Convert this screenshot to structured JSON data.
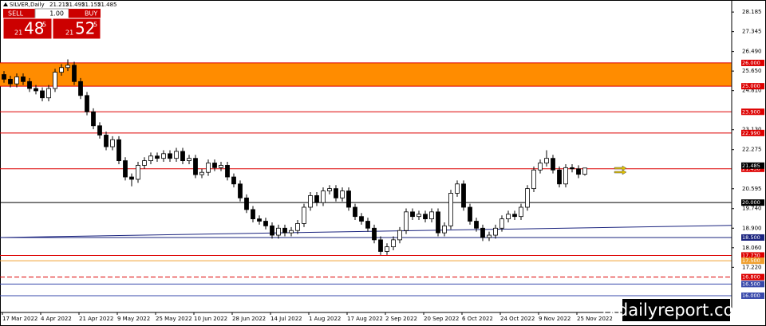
{
  "chart_data": {
    "type": "candlestick",
    "title": "SILVER,Daily",
    "categories": [
      "17 Mar 2022",
      null,
      null,
      null,
      null,
      null,
      "4 Apr 2022",
      null,
      null,
      null,
      null,
      null,
      "21 Apr 2022",
      null,
      null,
      null,
      null,
      null,
      "9 May 2022",
      null,
      null,
      null,
      null,
      null,
      "25 May 2022",
      null,
      null,
      null,
      null,
      null,
      "10 Jun 2022",
      null,
      null,
      null,
      null,
      null,
      "28 Jun 2022",
      null,
      null,
      null,
      null,
      null,
      "14 Jul 2022",
      null,
      null,
      null,
      null,
      null,
      "1 Aug 2022",
      null,
      null,
      null,
      null,
      null,
      "17 Aug 2022",
      null,
      null,
      null,
      null,
      null,
      "2 Sep 2022",
      null,
      null,
      null,
      null,
      null,
      "20 Sep 2022",
      null,
      null,
      null,
      null,
      null,
      "6 Oct 2022",
      null,
      null,
      null,
      null,
      null,
      "24 Oct 2022",
      null,
      null,
      null,
      null,
      null,
      "9 Nov 2022",
      null,
      null,
      null,
      null,
      null,
      "25 Nov 2022",
      null
    ],
    "ohlc": [
      [
        25.5,
        25.65,
        25.15,
        25.3
      ],
      [
        25.3,
        25.45,
        24.95,
        25.1
      ],
      [
        25.1,
        25.55,
        24.95,
        25.4
      ],
      [
        25.4,
        25.55,
        25.05,
        25.2
      ],
      [
        25.2,
        25.35,
        24.75,
        24.9
      ],
      [
        24.9,
        25.05,
        24.65,
        24.8
      ],
      [
        24.8,
        24.95,
        24.35,
        24.5
      ],
      [
        24.5,
        25.05,
        24.35,
        24.9
      ],
      [
        24.9,
        25.75,
        24.75,
        25.6
      ],
      [
        25.6,
        25.95,
        25.45,
        25.8
      ],
      [
        25.8,
        26.15,
        25.65,
        25.9
      ],
      [
        25.9,
        26.05,
        25.05,
        25.2
      ],
      [
        25.2,
        25.35,
        24.45,
        24.6
      ],
      [
        24.6,
        24.75,
        23.75,
        23.9
      ],
      [
        23.9,
        24.05,
        23.15,
        23.3
      ],
      [
        23.3,
        23.45,
        22.75,
        22.9
      ],
      [
        22.9,
        23.05,
        22.25,
        22.4
      ],
      [
        22.4,
        22.85,
        22.25,
        22.7
      ],
      [
        22.7,
        22.85,
        21.65,
        21.8
      ],
      [
        21.8,
        21.95,
        20.95,
        21.1
      ],
      [
        21.1,
        21.25,
        20.7,
        21.0
      ],
      [
        21.0,
        21.75,
        20.85,
        21.6
      ],
      [
        21.6,
        21.95,
        21.45,
        21.8
      ],
      [
        21.8,
        22.15,
        21.65,
        22.0
      ],
      [
        22.0,
        22.15,
        21.75,
        21.9
      ],
      [
        21.9,
        22.25,
        21.75,
        22.1
      ],
      [
        22.1,
        22.25,
        21.75,
        21.9
      ],
      [
        21.9,
        22.35,
        21.75,
        22.2
      ],
      [
        22.2,
        22.35,
        21.65,
        21.8
      ],
      [
        21.8,
        22.05,
        21.65,
        21.9
      ],
      [
        21.9,
        22.05,
        21.05,
        21.2
      ],
      [
        21.2,
        21.45,
        21.05,
        21.3
      ],
      [
        21.3,
        21.85,
        21.15,
        21.7
      ],
      [
        21.7,
        21.85,
        21.35,
        21.5
      ],
      [
        21.5,
        21.75,
        21.35,
        21.6
      ],
      [
        21.6,
        21.75,
        20.95,
        21.1
      ],
      [
        21.1,
        21.25,
        20.65,
        20.8
      ],
      [
        20.8,
        20.95,
        20.05,
        20.2
      ],
      [
        20.2,
        20.35,
        19.55,
        19.7
      ],
      [
        19.7,
        19.85,
        19.15,
        19.3
      ],
      [
        19.3,
        19.45,
        19.05,
        19.2
      ],
      [
        19.2,
        19.35,
        18.85,
        19.0
      ],
      [
        19.0,
        19.15,
        18.45,
        18.6
      ],
      [
        18.6,
        19.05,
        18.45,
        18.9
      ],
      [
        18.9,
        19.05,
        18.55,
        18.7
      ],
      [
        18.7,
        18.95,
        18.55,
        18.8
      ],
      [
        18.8,
        19.25,
        18.65,
        19.1
      ],
      [
        19.1,
        19.95,
        18.95,
        19.8
      ],
      [
        19.8,
        20.45,
        19.65,
        20.3
      ],
      [
        20.3,
        20.45,
        19.85,
        20.0
      ],
      [
        20.0,
        20.65,
        19.85,
        20.5
      ],
      [
        20.5,
        20.75,
        20.35,
        20.6
      ],
      [
        20.6,
        20.75,
        20.05,
        20.2
      ],
      [
        20.2,
        20.65,
        20.05,
        20.5
      ],
      [
        20.5,
        20.65,
        19.65,
        19.8
      ],
      [
        19.8,
        19.95,
        19.25,
        19.4
      ],
      [
        19.4,
        19.55,
        19.05,
        19.2
      ],
      [
        19.2,
        19.35,
        18.75,
        18.9
      ],
      [
        18.9,
        19.05,
        18.25,
        18.4
      ],
      [
        18.4,
        18.55,
        17.75,
        17.9
      ],
      [
        17.9,
        18.25,
        17.75,
        18.1
      ],
      [
        18.1,
        18.55,
        17.95,
        18.4
      ],
      [
        18.4,
        18.95,
        18.25,
        18.8
      ],
      [
        18.8,
        19.75,
        18.65,
        19.6
      ],
      [
        19.6,
        19.75,
        19.25,
        19.4
      ],
      [
        19.4,
        19.65,
        19.25,
        19.5
      ],
      [
        19.5,
        19.65,
        19.15,
        19.3
      ],
      [
        19.3,
        19.75,
        19.15,
        19.6
      ],
      [
        19.6,
        19.75,
        18.55,
        18.7
      ],
      [
        18.7,
        19.15,
        18.55,
        19.0
      ],
      [
        19.0,
        20.55,
        18.85,
        20.4
      ],
      [
        20.4,
        20.95,
        20.25,
        20.8
      ],
      [
        20.8,
        20.95,
        19.65,
        19.8
      ],
      [
        19.8,
        19.95,
        19.05,
        19.2
      ],
      [
        19.2,
        19.35,
        18.75,
        18.9
      ],
      [
        18.9,
        19.05,
        18.35,
        18.5
      ],
      [
        18.5,
        18.75,
        18.35,
        18.6
      ],
      [
        18.6,
        19.05,
        18.45,
        18.9
      ],
      [
        18.9,
        19.45,
        18.75,
        19.3
      ],
      [
        19.3,
        19.65,
        19.15,
        19.5
      ],
      [
        19.5,
        19.65,
        19.25,
        19.4
      ],
      [
        19.4,
        19.95,
        19.25,
        19.8
      ],
      [
        19.8,
        20.75,
        19.65,
        20.6
      ],
      [
        20.6,
        21.55,
        20.45,
        21.4
      ],
      [
        21.4,
        21.85,
        21.25,
        21.7
      ],
      [
        21.7,
        22.25,
        21.55,
        21.9
      ],
      [
        21.9,
        22.05,
        21.25,
        21.4
      ],
      [
        21.4,
        21.55,
        20.65,
        20.8
      ],
      [
        20.8,
        21.65,
        20.65,
        21.5
      ],
      [
        21.5,
        21.65,
        21.3,
        21.45
      ],
      [
        21.45,
        21.6,
        21.05,
        21.215
      ],
      [
        21.215,
        21.495,
        21.155,
        21.485
      ]
    ],
    "ylim": [
      15.28,
      28.6
    ],
    "yticks": [
      28.185,
      27.345,
      {
        "value": 26.49,
        "label": "26.490"
      },
      {
        "value": 25.65,
        "label": "25.650"
      },
      {
        "value": 24.81,
        "label": "24.810"
      },
      {
        "value": 23.13,
        "label": "23.130"
      },
      22.275,
      20.595,
      {
        "value": 19.74,
        "label": "19.740"
      },
      {
        "value": 18.9,
        "label": "18.900"
      },
      {
        "value": 18.06,
        "label": "18.060"
      },
      {
        "value": 17.22,
        "label": "17.220"
      }
    ],
    "levels": [
      {
        "value": 26,
        "label": "26.000",
        "color": "#dd0000"
      },
      {
        "value": 25,
        "label": "25.000",
        "color": "#dd0000"
      },
      {
        "value": 23.9,
        "label": "23.900",
        "color": "#dd0000"
      },
      {
        "value": 22.99,
        "label": "22.990",
        "color": "#dd0000"
      },
      {
        "value": 21.45,
        "label": "21.450",
        "color": "#dd0000"
      },
      {
        "value": 20,
        "label": "20.000",
        "color": "#000000"
      },
      {
        "value": 18.5,
        "label": "18.500",
        "color": "#1a237e"
      },
      {
        "value": 17.73,
        "label": "17.730",
        "color": "#dd0000"
      },
      {
        "value": 17.5,
        "label": "17.500",
        "color": "#f0a030"
      },
      {
        "value": 16.8,
        "label": "16.800",
        "color": "#dd0000"
      },
      {
        "value": 16.5,
        "label": "16.500",
        "color": "#3949ab"
      },
      {
        "value": 16,
        "label": "16.000",
        "color": "#3949ab"
      }
    ],
    "zone": {
      "values": [
        25,
        26
      ],
      "color": "#ff8c00"
    },
    "trendline": {
      "values": [
        18.5,
        19.02
      ],
      "color": "#1a237e"
    },
    "up_color": "#ffffff",
    "down_color": "#000000",
    "trade_panel": {
      "sell_label": "SELL",
      "lot": "1.00",
      "buy_label": "BUY",
      "sell": [
        "21",
        "48",
        "5"
      ],
      "buy": [
        "21",
        "52",
        "5"
      ]
    },
    "watermark": "fxdailyreport.com"
  }
}
